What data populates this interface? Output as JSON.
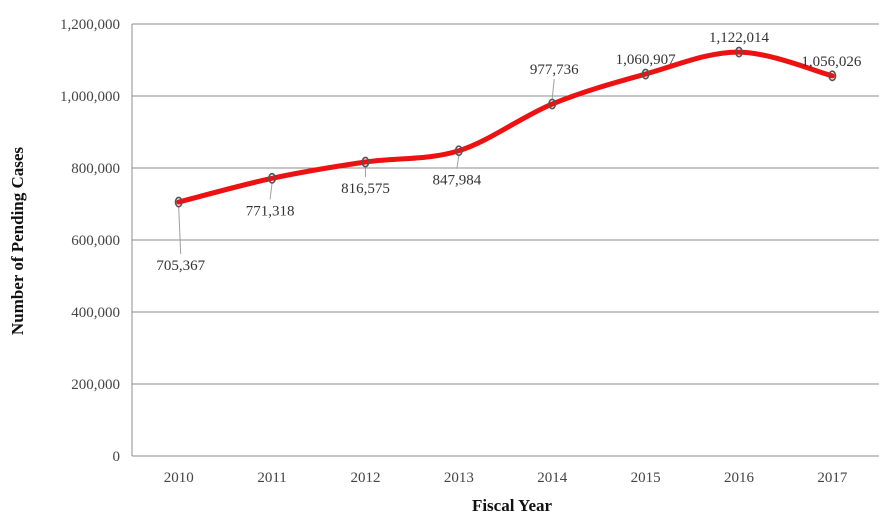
{
  "chart_data": {
    "type": "line",
    "title": "",
    "xlabel": "Fiscal Year",
    "ylabel": "Number of Pending Cases",
    "categories": [
      "2010",
      "2011",
      "2012",
      "2013",
      "2014",
      "2015",
      "2016",
      "2017"
    ],
    "series": [
      {
        "values": [
          705367,
          771318,
          816575,
          847984,
          977736,
          1060907,
          1122014,
          1056026
        ],
        "data_labels": [
          "705,367",
          "771,318",
          "816,575",
          "847,984",
          "977,736",
          "1,060,907",
          "1,122,014",
          "1,056,026"
        ]
      }
    ],
    "ylim": [
      0,
      1200000
    ],
    "yticks": [
      0,
      200000,
      400000,
      600000,
      800000,
      1000000,
      1200000
    ],
    "ytick_labels": [
      "0",
      "200,000",
      "400,000",
      "600,000",
      "800,000",
      "1,000,000",
      "1,200,000"
    ],
    "grid": "horizontal",
    "legend": "none",
    "line_color": "#ee1111",
    "marker_color": "#555555",
    "gridline_color": "#8c8c8c"
  }
}
